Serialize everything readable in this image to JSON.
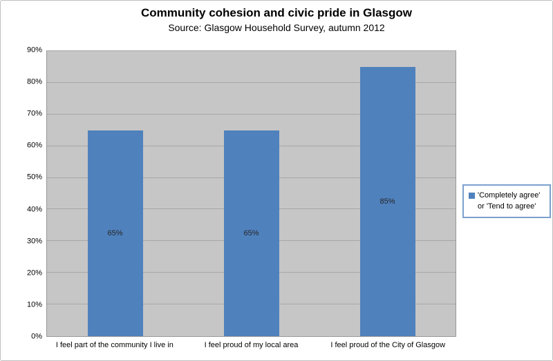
{
  "chart_data": {
    "type": "bar",
    "title": "Community cohesion and civic pride in Glasgow",
    "subtitle": "Source: Glasgow Household Survey, autumn 2012",
    "categories": [
      "I feel part of the community I live in",
      "I feel proud of my local area",
      "I feel proud of the City of Glasgow"
    ],
    "series": [
      {
        "name": "'Completely agree' or 'Tend to agree'",
        "values": [
          65,
          65,
          85
        ],
        "data_labels": [
          "65%",
          "65%",
          "85%"
        ]
      }
    ],
    "xlabel": "",
    "ylabel": "",
    "ylim": [
      0,
      90
    ],
    "ytick_interval": 10,
    "yticks": [
      "0%",
      "10%",
      "20%",
      "30%",
      "40%",
      "50%",
      "60%",
      "70%",
      "80%",
      "90%"
    ],
    "grid": true,
    "legend_position": "right",
    "colors": {
      "bar_fill": "#4F81BD",
      "plot_background": "#C6C6C6",
      "gridline": "#A6A6A6",
      "plot_border": "#969696",
      "legend_border": "#7BA0CD",
      "chart_border": "#BFBFBF",
      "data_label_text": "#262626",
      "text": "#000000"
    }
  }
}
